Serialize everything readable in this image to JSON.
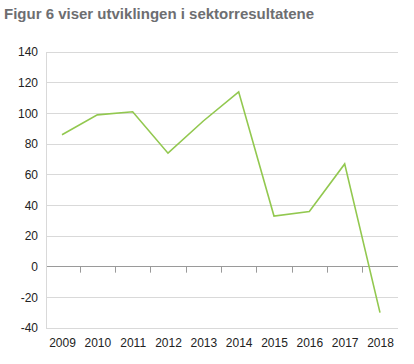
{
  "chart_data": {
    "type": "line",
    "title": "Figur 6 viser utviklingen i sektorresultatene",
    "categories": [
      "2009",
      "2010",
      "2011",
      "2012",
      "2013",
      "2014",
      "2015",
      "2016",
      "2017",
      "2018"
    ],
    "values": [
      86,
      99,
      101,
      74,
      95,
      114,
      33,
      36,
      67,
      -30
    ],
    "color": "#92c84f",
    "ylim": [
      -40,
      140
    ],
    "yticks": [
      -40,
      -20,
      0,
      20,
      40,
      60,
      80,
      100,
      120,
      140
    ],
    "grid": true
  }
}
